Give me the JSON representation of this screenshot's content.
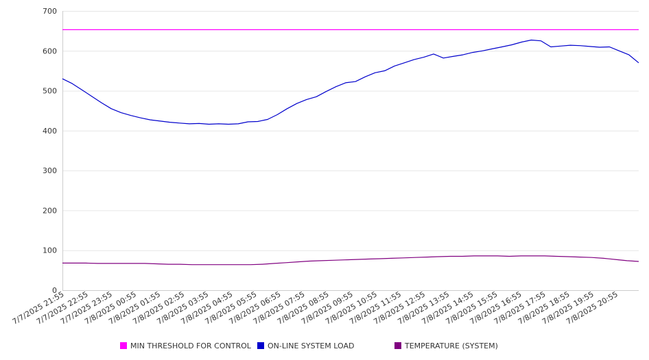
{
  "chart_data": {
    "type": "line",
    "title": "",
    "xlabel": "",
    "ylabel": "",
    "ylim": [
      0,
      700
    ],
    "yticks": [
      0,
      100,
      200,
      300,
      400,
      500,
      600,
      700
    ],
    "grid": true,
    "legend_position": "bottom",
    "x_tick_labels": [
      "7/7/2025 21:55",
      "7/7/2025 22:55",
      "7/7/2025 23:55",
      "7/8/2025 00:55",
      "7/8/2025 01:55",
      "7/8/2025 02:55",
      "7/8/2025 03:55",
      "7/8/2025 04:55",
      "7/8/2025 05:55",
      "7/8/2025 06:55",
      "7/8/2025 07:55",
      "7/8/2025 08:55",
      "7/8/2025 09:55",
      "7/8/2025 10:55",
      "7/8/2025 11:55",
      "7/8/2025 12:55",
      "7/8/2025 13:55",
      "7/8/2025 14:55",
      "7/8/2025 15:55",
      "7/8/2025 16:55",
      "7/8/2025 17:55",
      "7/8/2025 18:55",
      "7/8/2025 19:55",
      "7/8/2025 20:55"
    ],
    "series": [
      {
        "name": "MIN THRESHOLD FOR CONTROL",
        "color": "#ff00ff",
        "values": [
          653,
          653,
          653,
          653,
          653,
          653,
          653,
          653,
          653,
          653,
          653,
          653,
          653,
          653,
          653,
          653,
          653,
          653,
          653,
          653,
          653,
          653,
          653,
          653,
          653,
          653,
          653,
          653,
          653,
          653,
          653,
          653,
          653,
          653,
          653,
          653,
          653,
          653,
          653,
          653,
          653,
          653,
          653,
          653,
          653,
          653,
          653,
          653
        ]
      },
      {
        "name": "ON-LINE SYSTEM LOAD",
        "color": "#0000cc",
        "values": [
          530,
          518,
          502,
          486,
          470,
          455,
          445,
          438,
          432,
          427,
          424,
          421,
          419,
          417,
          418,
          416,
          417,
          416,
          417,
          422,
          423,
          428,
          440,
          455,
          468,
          478,
          485,
          498,
          510,
          520,
          523,
          535,
          545,
          550,
          562,
          570,
          578,
          584,
          592,
          582,
          586,
          590,
          596,
          600,
          605,
          610,
          615,
          622,
          627,
          625,
          610,
          612,
          614,
          613,
          611,
          609,
          610,
          600,
          590,
          570
        ]
      },
      {
        "name": "TEMPERATURE (SYSTEM)",
        "color": "#800080",
        "values": [
          68,
          68,
          68,
          67,
          67,
          67,
          67,
          67,
          66,
          65,
          65,
          64,
          64,
          64,
          64,
          64,
          64,
          65,
          67,
          69,
          71,
          73,
          74,
          75,
          76,
          77,
          78,
          79,
          80,
          81,
          82,
          83,
          84,
          85,
          85,
          86,
          86,
          86,
          85,
          86,
          86,
          86,
          85,
          84,
          83,
          82,
          80,
          77,
          74,
          72
        ]
      }
    ]
  }
}
